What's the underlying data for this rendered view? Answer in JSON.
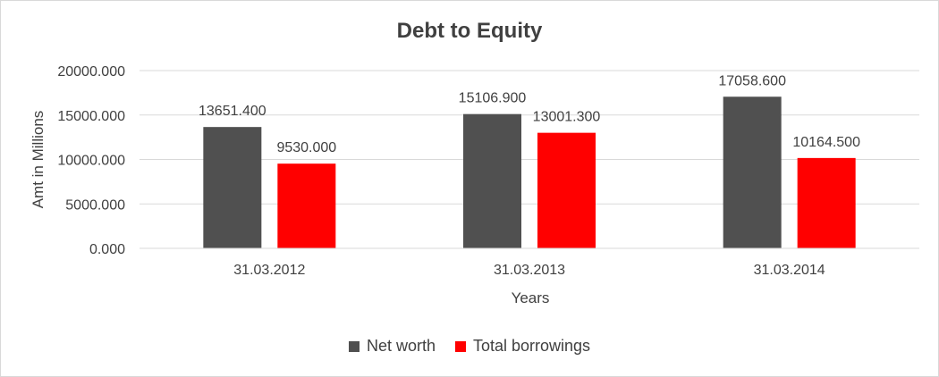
{
  "chart_data": {
    "type": "bar",
    "title": "Debt to Equity",
    "xlabel": "Years",
    "ylabel": "Amt in Millions",
    "categories": [
      "31.03.2012",
      "31.03.2013",
      "31.03.2014"
    ],
    "series": [
      {
        "name": "Net worth",
        "color": "#505050",
        "values": [
          13651.4,
          15106.9,
          17058.6
        ],
        "labels": [
          "13651.400",
          "15106.900",
          "17058.600"
        ]
      },
      {
        "name": "Total borrowings",
        "color": "#ff0000",
        "values": [
          9530.0,
          13001.3,
          10164.5
        ],
        "labels": [
          "9530.000",
          "13001.300",
          "10164.500"
        ]
      }
    ],
    "ylim": [
      0,
      20000
    ],
    "yticks": [
      0,
      5000,
      10000,
      15000,
      20000
    ],
    "ytick_labels": [
      "0.000",
      "5000.000",
      "10000.000",
      "15000.000",
      "20000.000"
    ],
    "grid": true,
    "legend_position": "bottom"
  }
}
